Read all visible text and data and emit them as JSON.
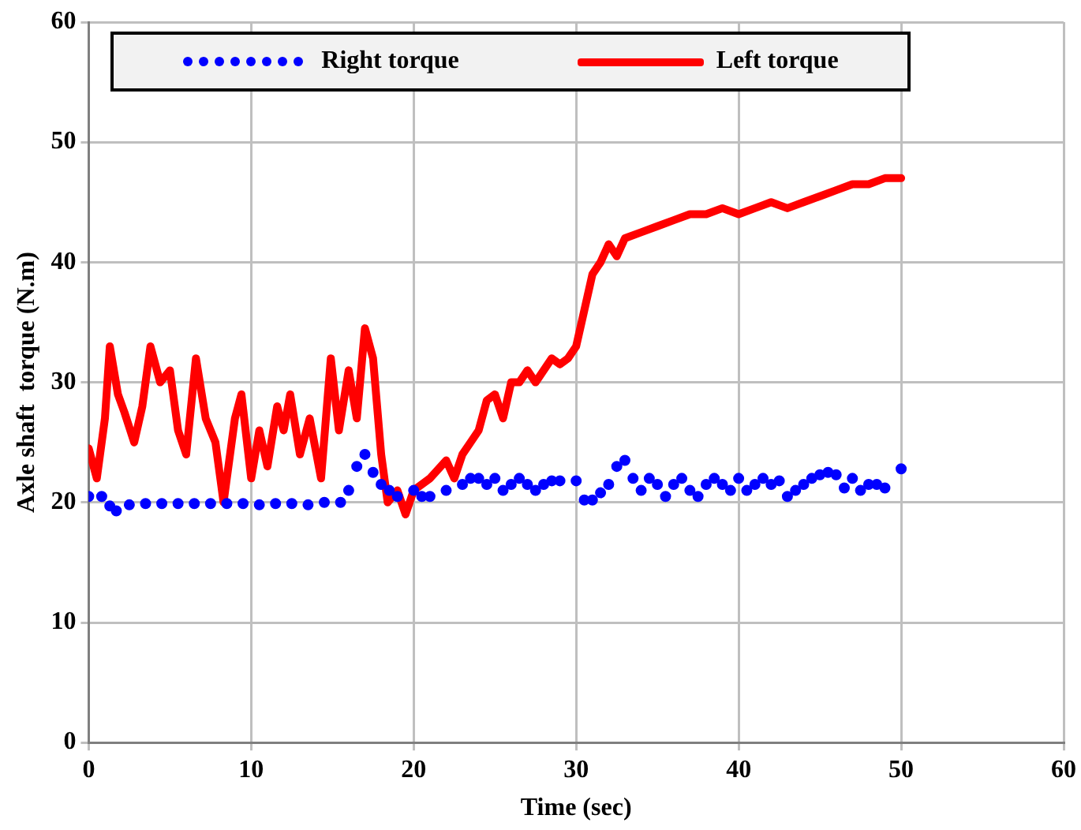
{
  "chart_data": {
    "type": "line",
    "xlabel": "Time (sec)",
    "ylabel": "Axle shaft  torque (N.m)",
    "xlim": [
      0,
      60
    ],
    "xticks": [
      0,
      10,
      20,
      30,
      40,
      50,
      60
    ],
    "ylim": [
      0,
      60
    ],
    "yticks": [
      0,
      10,
      20,
      30,
      40,
      50,
      60
    ],
    "grid": true,
    "legend": "top",
    "series": [
      {
        "name": "Right torque",
        "type": "scatter",
        "marker": "circle",
        "color": "#0000ff",
        "x": [
          0,
          0.8,
          1.3,
          1.7,
          2.5,
          3.5,
          4.5,
          5.5,
          6.5,
          7.5,
          8.5,
          9.5,
          10.5,
          11.5,
          12.5,
          13.5,
          14.5,
          15.5,
          16,
          16.5,
          17,
          17.5,
          18,
          18.5,
          19,
          20,
          20.5,
          21,
          22,
          23,
          23.5,
          24,
          24.5,
          25,
          25.5,
          26,
          26.5,
          27,
          27.5,
          28,
          28.5,
          29,
          30,
          30.5,
          31,
          31.5,
          32,
          32.5,
          33,
          33.5,
          34,
          34.5,
          35,
          35.5,
          36,
          36.5,
          37,
          37.5,
          38,
          38.5,
          39,
          39.5,
          40,
          40.5,
          41,
          41.5,
          42,
          42.5,
          43,
          43.5,
          44,
          44.5,
          45,
          45.5,
          46,
          46.5,
          47,
          47.5,
          48,
          48.5,
          49,
          50
        ],
        "values": [
          20.5,
          20.5,
          19.7,
          19.3,
          19.8,
          19.9,
          19.9,
          19.9,
          19.9,
          19.9,
          19.9,
          19.9,
          19.8,
          19.9,
          19.9,
          19.8,
          20,
          20,
          21,
          23,
          24,
          22.5,
          21.5,
          21,
          20.5,
          21,
          20.5,
          20.5,
          21,
          21.5,
          22,
          22,
          21.5,
          22,
          21,
          21.5,
          22,
          21.5,
          21,
          21.5,
          21.8,
          21.8,
          21.8,
          20.2,
          20.2,
          20.8,
          21.5,
          23,
          23.5,
          22,
          21,
          22,
          21.5,
          20.5,
          21.5,
          22,
          21,
          20.5,
          21.5,
          22,
          21.5,
          21,
          22,
          21,
          21.5,
          22,
          21.5,
          21.8,
          20.5,
          21,
          21.5,
          22,
          22.3,
          22.5,
          22.3,
          21.2,
          22,
          21,
          21.5,
          21.5,
          21.2,
          22.8
        ]
      },
      {
        "name": "Left torque",
        "type": "line",
        "marker": "none",
        "line_style": "solid",
        "color": "#ff0000",
        "x": [
          0,
          0.5,
          1,
          1.3,
          1.8,
          2.2,
          2.8,
          3.3,
          3.8,
          4.4,
          5,
          5.5,
          6,
          6.6,
          7.2,
          7.8,
          8.3,
          9,
          9.4,
          10,
          10.5,
          11,
          11.6,
          12,
          12.4,
          13,
          13.6,
          14.3,
          14.9,
          15.4,
          16,
          16.5,
          17,
          17.5,
          18,
          18.4,
          19,
          19.5,
          20,
          21,
          22,
          22.5,
          23,
          23.5,
          24,
          24.5,
          25,
          25.5,
          26,
          26.5,
          27,
          27.5,
          28,
          28.5,
          29,
          29.5,
          30,
          30.5,
          31,
          31.5,
          32,
          32.5,
          33,
          34,
          35,
          36,
          37,
          38,
          39,
          40,
          41,
          42,
          43,
          44,
          45,
          46,
          47,
          48,
          49,
          50
        ],
        "values": [
          24.5,
          22,
          27,
          33,
          29,
          27.5,
          25,
          28,
          33,
          30,
          31,
          26,
          24,
          32,
          27,
          25,
          20,
          27,
          29,
          22,
          26,
          23,
          28,
          26,
          29,
          24,
          27,
          22,
          32,
          26,
          31,
          27,
          34.5,
          32,
          24,
          20,
          21,
          19,
          21,
          22,
          23.5,
          22,
          24,
          25,
          26,
          28.5,
          29,
          27,
          30,
          30,
          31,
          30,
          31,
          32,
          31.5,
          32,
          33,
          36,
          39,
          40,
          41.5,
          40.5,
          42,
          42.5,
          43,
          43.5,
          44,
          44,
          44.5,
          44,
          44.5,
          45,
          44.5,
          45,
          45.5,
          46,
          46.5,
          46.5,
          47,
          47
        ]
      }
    ]
  }
}
